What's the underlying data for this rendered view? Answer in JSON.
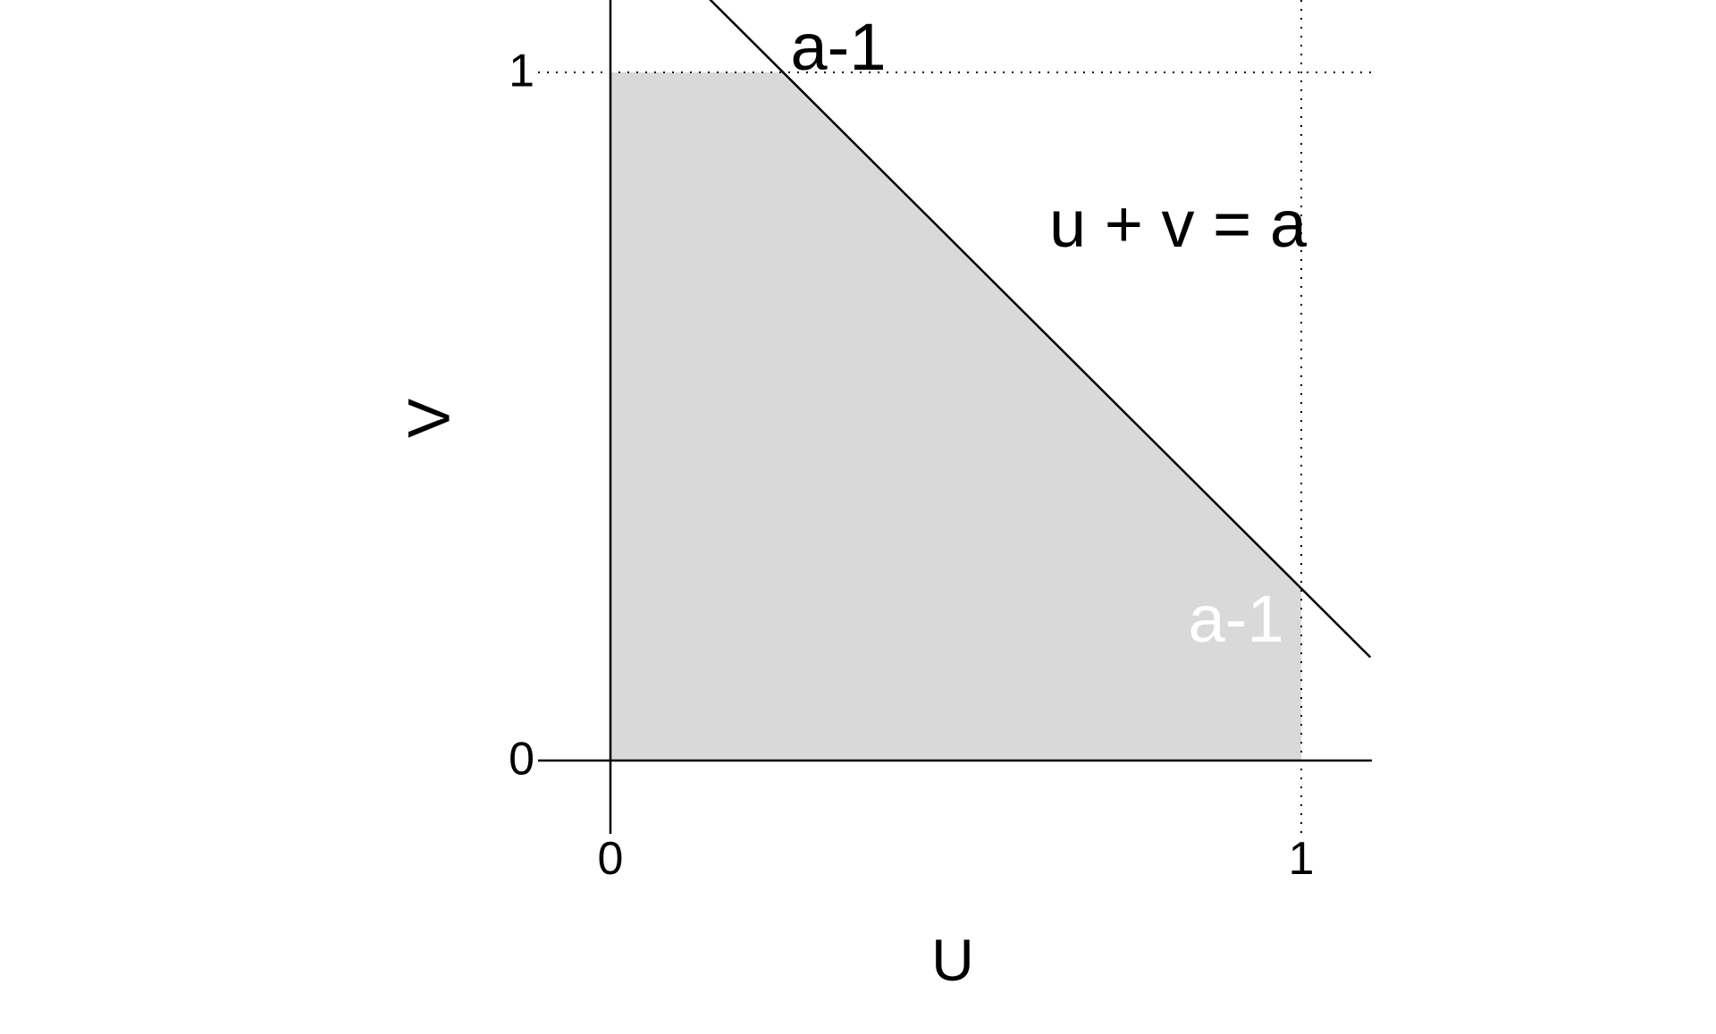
{
  "diagram": {
    "xlabel": "U",
    "ylabel": "V",
    "ticks": {
      "x_zero": "0",
      "x_one": "1",
      "y_zero": "0",
      "y_one": "1"
    },
    "annotations": {
      "line_label": "u + v = a",
      "top_intercept": "a-1",
      "right_intercept": "a-1"
    },
    "a": 1.25,
    "x_range": [
      -0.1,
      1.1
    ],
    "y_range": [
      -0.1,
      1.1
    ],
    "colors": {
      "region_fill": "#d9d9d9",
      "line": "#000000",
      "guide": "#000000",
      "white_label": "#ffffff"
    }
  }
}
